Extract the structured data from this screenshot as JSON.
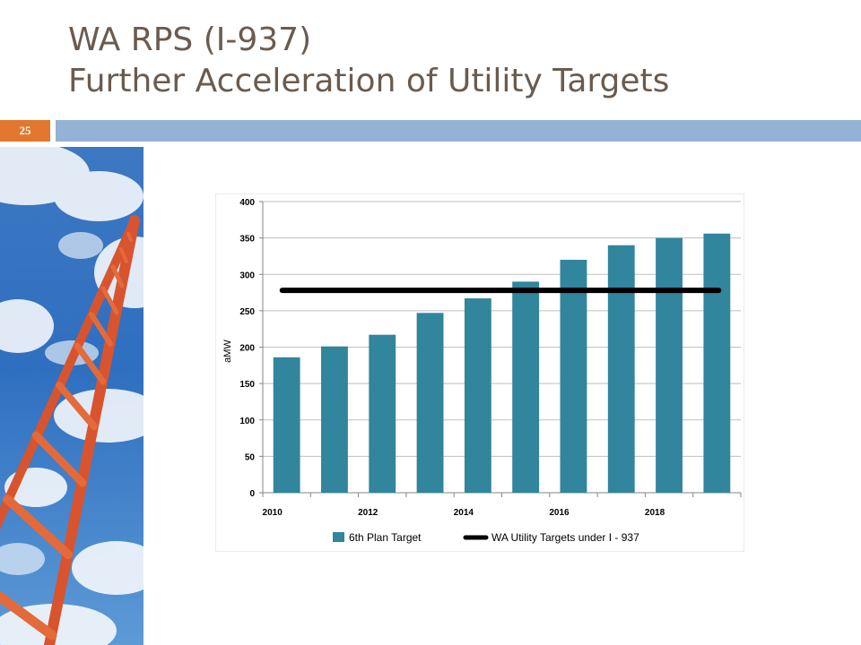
{
  "slide": {
    "title_line1": "WA RPS (I-937)",
    "title_line2": "Further Acceleration of Utility Targets",
    "number": "25",
    "photo_subject": "ladder-to-sky-icon"
  },
  "colors": {
    "title": "#6b5b4e",
    "accent_orange": "#e2772f",
    "band_blue": "#93b2d4",
    "bar": "#31859c",
    "target_line": "#000000"
  },
  "chart_data": {
    "type": "bar",
    "title": "",
    "xlabel": "",
    "ylabel": "aMW",
    "categories": [
      "2010",
      "2011",
      "2012",
      "2013",
      "2014",
      "2015",
      "2016",
      "2017",
      "2018",
      "2019"
    ],
    "x_tick_labels": [
      "2010",
      "",
      "2012",
      "",
      "2014",
      "",
      "2016",
      "",
      "2018",
      ""
    ],
    "ylim": [
      0,
      400
    ],
    "y_ticks": [
      0,
      50,
      100,
      150,
      200,
      250,
      300,
      350,
      400
    ],
    "grid": true,
    "legend_position": "bottom",
    "series": [
      {
        "name": "6th Plan Target",
        "type": "bar",
        "values": [
          186,
          201,
          217,
          247,
          267,
          290,
          320,
          340,
          350,
          356
        ]
      },
      {
        "name": "WA Utility Targets under I - 937",
        "type": "line",
        "values": [
          278,
          278,
          278,
          278,
          278,
          278,
          278,
          278,
          278,
          278
        ]
      }
    ]
  }
}
